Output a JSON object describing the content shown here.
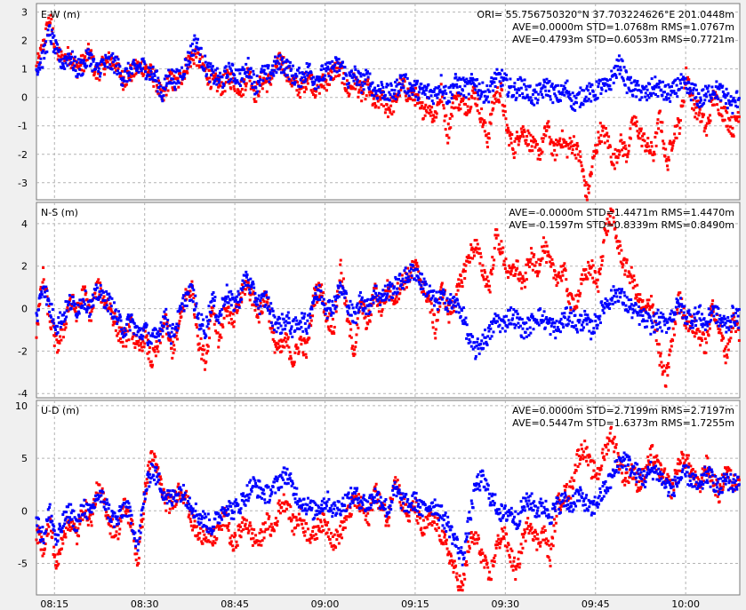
{
  "chart_data": {
    "type": "scatter",
    "x_unit": "time",
    "x_ticks": [
      "08:15",
      "08:30",
      "08:45",
      "09:00",
      "09:15",
      "09:30",
      "09:45",
      "10:00"
    ],
    "x_tick_minutes": [
      495,
      510,
      525,
      540,
      555,
      570,
      585,
      600
    ],
    "x_range_minutes": [
      492,
      609
    ],
    "grid": true,
    "colors": {
      "series_a": "#ff0000",
      "series_b": "#0000ff",
      "grid": "#b4b4b4",
      "panel_bg": "#ffffff"
    },
    "panels": [
      {
        "label": "E-W (m)",
        "ylim": [
          -3.6,
          3.3
        ],
        "yticks": [
          3,
          2,
          1,
          0,
          -1,
          -2,
          -3
        ],
        "annotations": [
          "ORI= 55.756750320°N   37.703224626°E 201.0448m",
          "AVE=0.0000m STD=1.0768m RMS=1.0767m",
          "AVE=0.4793m STD=0.6053m RMS=0.7721m"
        ],
        "series": [
          {
            "color": "red",
            "values": [
              1.0,
              1.8,
              2.8,
              1.6,
              1.3,
              1.5,
              1.0,
              1.2,
              1.6,
              0.8,
              1.1,
              1.3,
              1.2,
              0.6,
              0.8,
              1.0,
              1.1,
              0.9,
              0.6,
              -0.1,
              0.7,
              0.4,
              0.8,
              1.3,
              1.5,
              1.1,
              0.7,
              0.5,
              0.4,
              0.7,
              0.5,
              0.3,
              0.9,
              0.1,
              0.6,
              0.5,
              1.1,
              1.3,
              0.8,
              0.4,
              0.3,
              0.8,
              0.3,
              0.5,
              0.6,
              1.0,
              0.9,
              0.2,
              0.6,
              0.1,
              0.4,
              -0.3,
              0.0,
              -0.4,
              -0.2,
              0.5,
              0.1,
              0.1,
              -0.5,
              -0.2,
              -0.7,
              0.2,
              -1.3,
              0.0,
              -0.2,
              -0.3,
              0.2,
              -0.6,
              -1.5,
              0.0,
              0.2,
              -1.2,
              -1.8,
              -1.1,
              -1.4,
              -1.8,
              -1.9,
              -1.0,
              -2.0,
              -1.4,
              -1.8,
              -1.6,
              -2.2,
              -3.5,
              -2.1,
              -1.2,
              -1.4,
              -2.3,
              -1.6,
              -2.0,
              -0.8,
              -1.3,
              -1.7,
              -2.0,
              -0.6,
              -2.4,
              -1.3,
              -0.9,
              0.9,
              -0.3,
              -0.5,
              -1.2,
              0.0,
              -0.3,
              -0.7,
              -1.1,
              -0.4
            ]
          },
          {
            "color": "blue",
            "values": [
              1.0,
              1.4,
              2.3,
              1.6,
              1.2,
              1.5,
              1.0,
              1.1,
              1.5,
              0.9,
              1.2,
              1.2,
              1.2,
              0.7,
              0.9,
              1.0,
              1.1,
              0.9,
              0.7,
              0.1,
              0.8,
              0.6,
              0.9,
              1.4,
              2.0,
              1.3,
              0.9,
              0.7,
              0.6,
              0.9,
              0.8,
              0.7,
              1.1,
              0.4,
              0.8,
              0.8,
              1.1,
              1.2,
              1.0,
              0.7,
              0.7,
              1.0,
              0.6,
              0.8,
              0.9,
              1.1,
              1.1,
              0.6,
              0.8,
              0.5,
              0.7,
              0.2,
              0.3,
              0.1,
              0.2,
              0.6,
              0.4,
              0.3,
              0.2,
              0.2,
              0.1,
              0.5,
              0.0,
              0.5,
              0.4,
              0.3,
              0.6,
              0.2,
              0.1,
              0.6,
              0.7,
              0.4,
              0.2,
              0.4,
              0.2,
              0.0,
              0.2,
              0.4,
              0.1,
              0.1,
              0.3,
              -0.2,
              0.0,
              0.2,
              0.1,
              0.4,
              0.3,
              0.8,
              1.2,
              0.5,
              0.3,
              0.2,
              0.1,
              0.4,
              0.3,
              0.1,
              0.2,
              0.5,
              0.3,
              0.2,
              -0.1,
              0.1,
              0.3,
              0.2,
              0.0,
              -0.3,
              0.1
            ]
          }
        ]
      },
      {
        "label": "N-S (m)",
        "ylim": [
          -4.2,
          5.0
        ],
        "yticks": [
          4,
          2,
          0,
          -2,
          -4
        ],
        "annotations": [
          "AVE=-0.0000m STD=1.4471m RMS=1.4470m",
          "AVE=-0.1597m STD=0.8339m RMS=0.8490m"
        ],
        "series": [
          {
            "color": "red",
            "values": [
              -1.0,
              1.5,
              -0.5,
              -1.8,
              -1.0,
              0.5,
              -0.2,
              0.8,
              -0.3,
              1.0,
              0.5,
              0.0,
              -1.0,
              -1.5,
              -0.8,
              -2.0,
              -1.3,
              -2.5,
              -1.8,
              -0.5,
              -2.0,
              -1.0,
              0.5,
              1.0,
              -1.5,
              -2.5,
              0.2,
              -1.5,
              0.2,
              -0.8,
              0.3,
              1.2,
              0.5,
              -0.3,
              0.8,
              -1.5,
              -2.0,
              -1.5,
              -2.5,
              -1.5,
              -2.0,
              0.5,
              1.0,
              -0.5,
              -0.8,
              2.0,
              -0.5,
              -2.0,
              0.3,
              -0.8,
              0.8,
              0.0,
              1.0,
              0.5,
              1.2,
              1.5,
              2.0,
              1.2,
              0.5,
              -1.0,
              1.0,
              -0.3,
              0.5,
              1.5,
              2.5,
              3.0,
              1.8,
              1.0,
              3.5,
              2.5,
              1.5,
              2.0,
              1.0,
              2.5,
              1.8,
              3.0,
              2.0,
              1.5,
              1.8,
              0.2,
              0.5,
              1.5,
              2.0,
              1.0,
              3.5,
              4.5,
              3.0,
              2.0,
              1.5,
              0.5,
              -0.2,
              0.5,
              -2.0,
              -3.5,
              -1.5,
              0.5,
              -0.5,
              -0.8,
              -1.2,
              -1.8,
              0.2,
              -1.0,
              -2.2,
              -0.5,
              -1.2
            ]
          },
          {
            "color": "blue",
            "values": [
              -0.5,
              1.2,
              0.0,
              -0.8,
              -0.3,
              0.3,
              0.0,
              0.5,
              0.0,
              0.8,
              0.5,
              0.2,
              -0.5,
              -1.0,
              -0.5,
              -1.2,
              -1.0,
              -1.5,
              -1.2,
              -0.3,
              -1.3,
              -0.5,
              0.5,
              0.8,
              -0.5,
              -1.0,
              0.5,
              -0.5,
              0.8,
              0.2,
              0.5,
              1.5,
              0.8,
              0.2,
              0.5,
              -0.5,
              -0.8,
              -0.5,
              -1.0,
              -0.5,
              -0.8,
              0.5,
              0.8,
              0.0,
              0.2,
              1.0,
              0.3,
              -0.5,
              0.5,
              0.0,
              0.8,
              0.5,
              0.8,
              1.0,
              1.3,
              1.6,
              1.8,
              1.2,
              0.8,
              0.3,
              0.5,
              0.3,
              0.2,
              -0.2,
              -1.5,
              -2.0,
              -1.5,
              -1.2,
              -0.5,
              -0.8,
              -0.3,
              -0.5,
              -1.0,
              -0.8,
              -0.3,
              -0.5,
              -0.8,
              -1.0,
              -0.5,
              -0.3,
              -0.8,
              -0.5,
              -1.0,
              -0.5,
              0.2,
              0.5,
              0.8,
              0.3,
              0.0,
              -0.3,
              -0.5,
              -0.8,
              -0.5,
              -0.8,
              -0.3,
              0.2,
              -0.3,
              -0.5,
              -0.2,
              -0.8,
              0.0,
              -0.5,
              -0.8,
              -0.3,
              -0.5
            ]
          }
        ]
      },
      {
        "label": "U-D (m)",
        "ylim": [
          -8.0,
          10.5
        ],
        "yticks": [
          10,
          5,
          0,
          -5
        ],
        "annotations": [
          "AVE=0.0000m STD=2.7199m RMS=2.7197m",
          "AVE=0.5447m STD=1.6373m RMS=1.7255m"
        ],
        "series": [
          {
            "color": "red",
            "values": [
              -2.0,
              -3.5,
              -1.0,
              -5.5,
              -2.0,
              -1.0,
              -2.5,
              0.5,
              -1.0,
              2.0,
              1.0,
              -1.5,
              -2.0,
              0.5,
              -1.0,
              -5.0,
              1.5,
              5.5,
              3.5,
              1.0,
              0.5,
              2.0,
              1.5,
              -1.0,
              -2.5,
              -2.0,
              -3.0,
              -1.5,
              -0.5,
              -3.5,
              -2.0,
              -1.0,
              -2.5,
              -3.0,
              -1.0,
              -2.0,
              0.5,
              1.0,
              -1.5,
              -0.5,
              -2.0,
              -2.5,
              -1.0,
              -1.5,
              -3.0,
              -2.0,
              -0.5,
              1.0,
              0.5,
              -1.0,
              2.0,
              0.5,
              -1.0,
              3.5,
              1.0,
              -0.5,
              0.5,
              -2.0,
              -1.0,
              -1.0,
              -2.5,
              -4.0,
              -6.0,
              -7.5,
              -3.0,
              -2.5,
              -4.5,
              -6.5,
              -3.5,
              -2.0,
              -4.0,
              -6.0,
              -2.5,
              -1.0,
              -3.0,
              -2.0,
              -4.5,
              0.5,
              1.5,
              2.0,
              5.0,
              6.0,
              4.0,
              3.5,
              5.5,
              7.5,
              5.0,
              3.0,
              4.0,
              2.5,
              3.5,
              5.5,
              4.0,
              3.0,
              2.0,
              4.5,
              5.0,
              3.5,
              2.0,
              4.5,
              3.0,
              1.5,
              4.0,
              2.5,
              3.5
            ]
          },
          {
            "color": "blue",
            "values": [
              -1.0,
              -2.5,
              0.0,
              -3.0,
              -1.0,
              0.0,
              -1.5,
              0.5,
              -0.5,
              1.5,
              1.0,
              -0.5,
              -1.0,
              0.5,
              -0.5,
              -3.5,
              1.5,
              4.0,
              3.0,
              1.5,
              1.0,
              2.0,
              1.5,
              0.5,
              -0.5,
              -1.0,
              -1.5,
              -0.5,
              0.5,
              0.0,
              0.5,
              1.5,
              2.5,
              2.0,
              1.5,
              2.0,
              3.0,
              3.5,
              2.0,
              1.0,
              0.5,
              0.0,
              0.5,
              1.0,
              0.0,
              0.5,
              1.0,
              1.5,
              1.0,
              0.5,
              1.5,
              1.0,
              0.0,
              2.0,
              1.0,
              0.5,
              1.0,
              0.0,
              0.5,
              0.5,
              -0.5,
              -1.5,
              -3.0,
              -4.5,
              -1.0,
              2.5,
              3.0,
              1.5,
              0.5,
              -0.5,
              0.0,
              -1.0,
              0.5,
              1.0,
              0.0,
              0.5,
              -0.5,
              0.5,
              1.0,
              0.5,
              1.5,
              1.0,
              0.0,
              1.0,
              2.0,
              3.0,
              4.5,
              5.0,
              4.0,
              3.5,
              3.0,
              4.0,
              3.5,
              2.5,
              2.0,
              3.0,
              3.5,
              3.0,
              2.0,
              3.5,
              3.0,
              2.0,
              3.0,
              2.5,
              3.0
            ]
          }
        ]
      }
    ]
  }
}
